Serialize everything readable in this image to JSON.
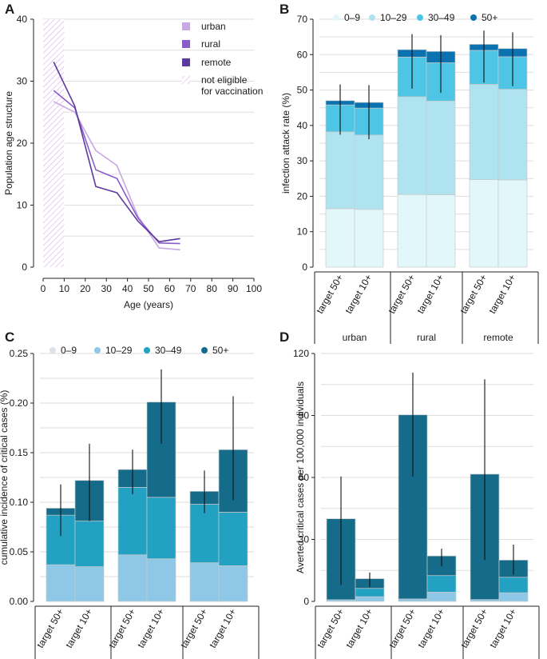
{
  "colors": {
    "urban": "#c9a8e3",
    "rural": "#8a5cc9",
    "remote": "#5e3a9e",
    "not_eligible": "#d9b8ef",
    "B_0_9": "#e2f7fa",
    "B_10_29": "#b0e3f0",
    "B_30_49": "#4ec5e4",
    "B_50p": "#0a72b0",
    "C_0_9": "#dde1ea",
    "C_10_29": "#8ec8e6",
    "C_30_49": "#22a1c3",
    "C_50p": "#156b8a",
    "grid": "#dedede",
    "axis": "#222222"
  },
  "panels": {
    "A": {
      "letter": "A"
    },
    "B": {
      "letter": "B"
    },
    "C": {
      "letter": "C"
    },
    "D": {
      "letter": "D"
    }
  },
  "chart_data": [
    {
      "panel": "A",
      "type": "line",
      "xlabel": "Age (years)",
      "ylabel": "Population age structure",
      "xlim": [
        0,
        100
      ],
      "ylim": [
        0,
        40
      ],
      "xticks": [
        0,
        10,
        20,
        30,
        40,
        50,
        60,
        70,
        80,
        90,
        100
      ],
      "yticks": [
        0,
        10,
        20,
        30,
        40
      ],
      "shaded_region": {
        "x": [
          0,
          10
        ],
        "label": "not eligible for vaccination",
        "label_lines": [
          "not eligible",
          "for vaccination"
        ]
      },
      "x": [
        5,
        15,
        25,
        35,
        45,
        55,
        65
      ],
      "series": [
        {
          "name": "urban",
          "values": [
            26.7,
            25.0,
            18.8,
            16.4,
            8.2,
            3.1,
            2.8
          ]
        },
        {
          "name": "rural",
          "values": [
            28.5,
            25.7,
            15.7,
            14.3,
            7.9,
            3.9,
            3.8
          ]
        },
        {
          "name": "remote",
          "values": [
            33.1,
            26.0,
            13.0,
            12.0,
            7.4,
            4.1,
            4.6
          ]
        }
      ],
      "legend": [
        "urban",
        "rural",
        "remote",
        "not eligible for vaccination"
      ]
    },
    {
      "panel": "B",
      "type": "bar",
      "stacked": true,
      "ylabel": "infection attack rate (%)",
      "ylim": [
        0,
        70
      ],
      "yticks": [
        0,
        10,
        20,
        30,
        40,
        50,
        60,
        70
      ],
      "legend": [
        "0–9",
        "10–29",
        "30–49",
        "50+"
      ],
      "groups": [
        "urban",
        "rural",
        "remote"
      ],
      "bar_labels": [
        "target 50+",
        "target 10+"
      ],
      "series": [
        {
          "name": "0–9",
          "values": [
            16.5,
            16.3,
            20.5,
            20.4,
            24.7,
            24.6
          ]
        },
        {
          "name": "10–29",
          "values": [
            21.7,
            21.0,
            27.6,
            26.5,
            26.9,
            25.6
          ]
        },
        {
          "name": "30–49",
          "values": [
            7.6,
            7.6,
            11.2,
            10.8,
            9.6,
            9.2
          ]
        },
        {
          "name": "50+",
          "values": [
            1.2,
            1.6,
            2.1,
            3.2,
            1.7,
            2.3
          ]
        }
      ],
      "totals": [
        47.0,
        46.5,
        61.4,
        60.9,
        62.9,
        61.7
      ],
      "error_low": [
        37.4,
        36.1,
        50.4,
        49.2,
        52.1,
        51.1
      ],
      "error_high": [
        51.6,
        51.4,
        65.8,
        65.5,
        66.8,
        66.3
      ]
    },
    {
      "panel": "C",
      "type": "bar",
      "stacked": true,
      "ylabel": "cumulative incidence of critical cases (%)",
      "ylim": [
        0,
        0.25
      ],
      "yticks": [
        "0.00",
        "0.05",
        "0.10",
        "0.15",
        "0.20",
        "0.25"
      ],
      "legend": [
        "0–9",
        "10–29",
        "30–49",
        "50+"
      ],
      "groups": [
        "urban",
        "rural",
        "remote"
      ],
      "bar_labels": [
        "target 50+",
        "target 10+"
      ],
      "series": [
        {
          "name": "0–9",
          "values": [
            0.0,
            0.0,
            0.0,
            0.0,
            0.0,
            0.0
          ]
        },
        {
          "name": "10–29",
          "values": [
            0.037,
            0.035,
            0.047,
            0.043,
            0.039,
            0.036
          ]
        },
        {
          "name": "30–49",
          "values": [
            0.05,
            0.046,
            0.068,
            0.062,
            0.059,
            0.054
          ]
        },
        {
          "name": "50+",
          "values": [
            0.007,
            0.041,
            0.018,
            0.096,
            0.013,
            0.063
          ]
        }
      ],
      "totals": [
        0.094,
        0.122,
        0.133,
        0.201,
        0.111,
        0.153
      ],
      "error_low": [
        0.066,
        0.081,
        0.108,
        0.159,
        0.089,
        0.102
      ],
      "error_high": [
        0.118,
        0.159,
        0.153,
        0.234,
        0.132,
        0.207
      ]
    },
    {
      "panel": "D",
      "type": "bar",
      "stacked": true,
      "ylabel": "Averted critical cases per 100,000 individuals",
      "ylim": [
        0,
        120
      ],
      "yticks": [
        0,
        30,
        60,
        90,
        120
      ],
      "groups": [
        "urban",
        "rural",
        "remote"
      ],
      "bar_labels": [
        "target 50+",
        "target 10+"
      ],
      "series": [
        {
          "name": "0–9",
          "values": [
            0.0,
            0.0,
            0.0,
            0.0,
            0.0,
            0.0
          ]
        },
        {
          "name": "10–29",
          "values": [
            0.8,
            2.3,
            1.2,
            4.5,
            0.9,
            4.2
          ]
        },
        {
          "name": "30–49",
          "values": [
            0.0,
            4.0,
            0.0,
            8.0,
            0.0,
            7.5
          ]
        },
        {
          "name": "50+",
          "values": [
            39.2,
            4.7,
            89.1,
            9.5,
            60.7,
            8.3
          ]
        }
      ],
      "totals": [
        40.0,
        11.0,
        90.3,
        22.0,
        61.6,
        20.0
      ],
      "error_low": [
        8.0,
        7.0,
        60.5,
        17.0,
        20.0,
        13.0
      ],
      "error_high": [
        60.5,
        14.0,
        110.7,
        25.5,
        107.5,
        27.5
      ]
    }
  ]
}
